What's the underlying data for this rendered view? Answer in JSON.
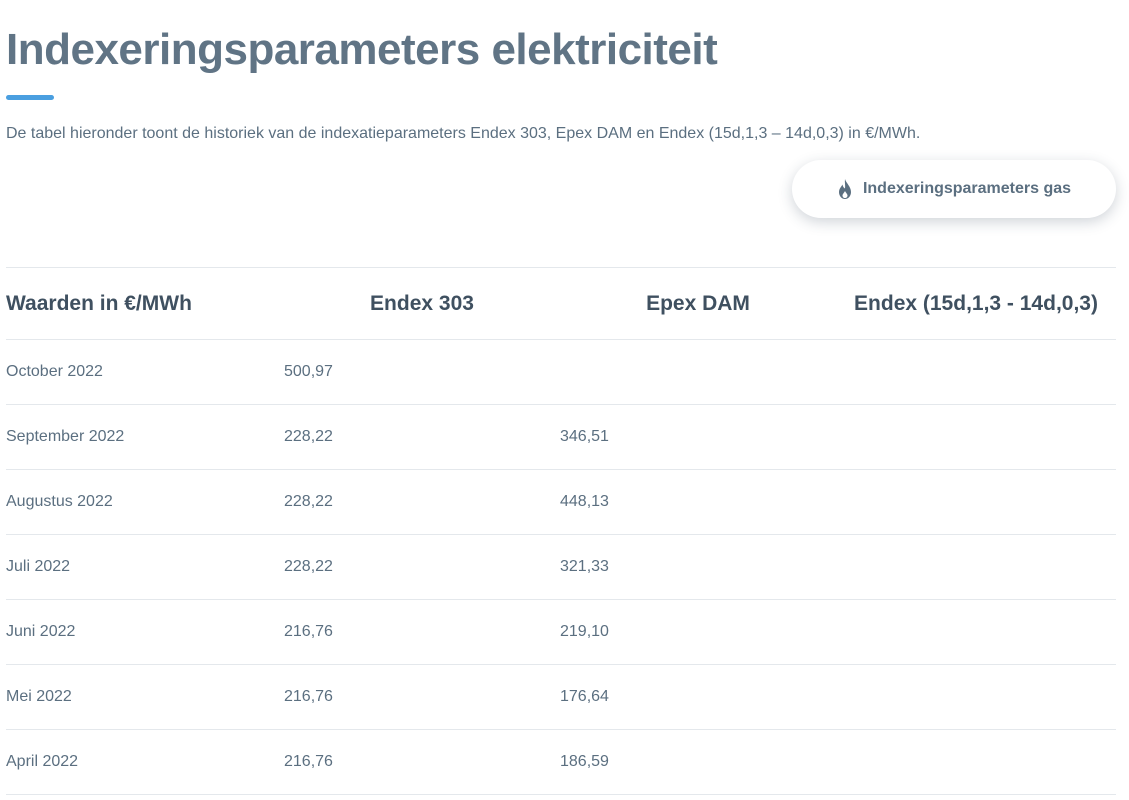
{
  "page": {
    "title": "Indexeringsparameters elektriciteit",
    "intro": "De tabel hieronder toont de historiek van de indexatieparameters Endex 303, Epex DAM en Endex (15d,1,3 – 14d,0,3) in €/MWh."
  },
  "gas_button": {
    "label": "Indexeringsparameters gas",
    "icon": "flame-icon"
  },
  "colors": {
    "accent": "#4a9fe0",
    "title": "#607485",
    "text": "#5b6f80",
    "header_text": "#3f5060",
    "divider": "#e4e8ec"
  },
  "table": {
    "headers": [
      "Waarden in €/MWh",
      "Endex 303",
      "Epex DAM",
      "Endex (15d,1,3 - 14d,0,3)"
    ],
    "rows": [
      {
        "month": "October 2022",
        "endex303": "500,97",
        "epex_dam": "",
        "endex_15d": ""
      },
      {
        "month": "September 2022",
        "endex303": "228,22",
        "epex_dam": "346,51",
        "endex_15d": ""
      },
      {
        "month": "Augustus 2022",
        "endex303": "228,22",
        "epex_dam": "448,13",
        "endex_15d": ""
      },
      {
        "month": "Juli 2022",
        "endex303": "228,22",
        "epex_dam": "321,33",
        "endex_15d": ""
      },
      {
        "month": "Juni 2022",
        "endex303": "216,76",
        "epex_dam": "219,10",
        "endex_15d": ""
      },
      {
        "month": "Mei 2022",
        "endex303": "216,76",
        "epex_dam": "176,64",
        "endex_15d": ""
      },
      {
        "month": "April 2022",
        "endex303": "216,76",
        "epex_dam": "186,59",
        "endex_15d": ""
      }
    ]
  }
}
